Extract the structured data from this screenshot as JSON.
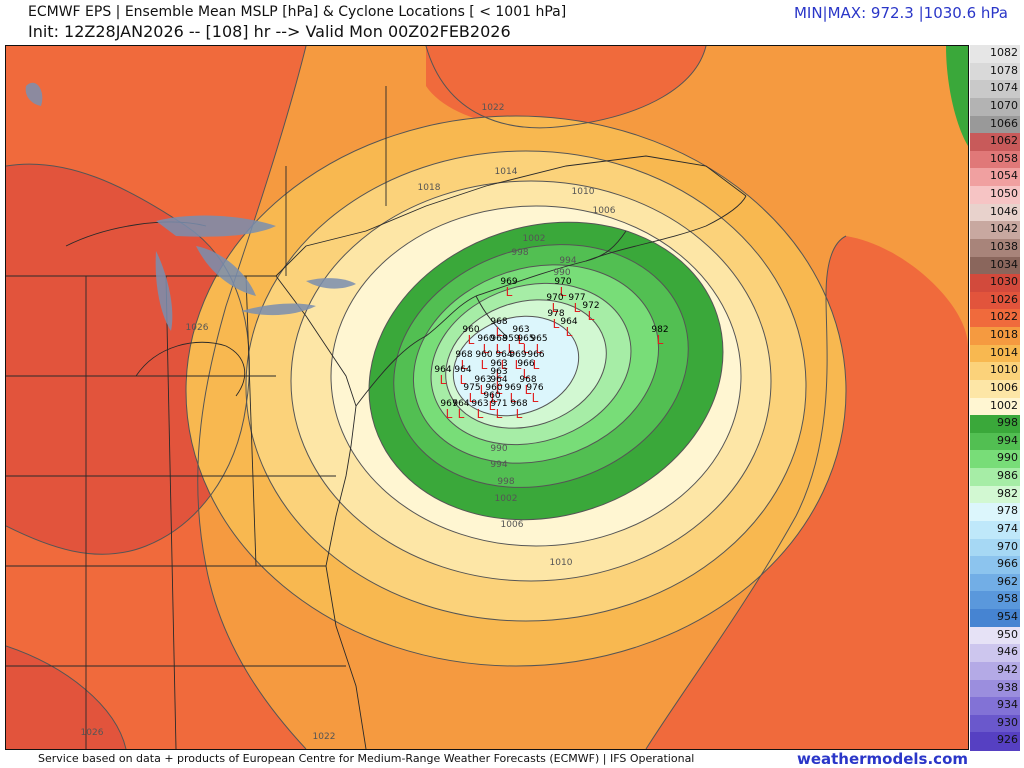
{
  "header": {
    "title": "ECMWF EPS | Ensemble Mean MSLP [hPa] & Cyclone Locations [ < 1001 hPa]",
    "subtitle": "Init: 12Z28JAN2026 -- [108] hr --> Valid Mon 00Z02FEB2026",
    "minmax": "MIN|MAX: 972.3 |1030.6 hPa"
  },
  "footer": {
    "credit": "Service based on data + products of European Centre for Medium-Range Weather Forecasts (ECMWF) | IFS Operational",
    "brand": "weathermodels.com"
  },
  "colors": {
    "land_border": "#2a2a2a",
    "lakes": "#7a8fb0",
    "contour": "#555555",
    "cyclone_marker": "#e02020"
  },
  "legend": [
    {
      "label": "1082",
      "color": "#e6e6e6"
    },
    {
      "label": "1078",
      "color": "#d9d9d9"
    },
    {
      "label": "1074",
      "color": "#c9c9c9"
    },
    {
      "label": "1070",
      "color": "#b3b3b3"
    },
    {
      "label": "1066",
      "color": "#999999"
    },
    {
      "label": "1062",
      "color": "#c85a5a"
    },
    {
      "label": "1058",
      "color": "#e07878"
    },
    {
      "label": "1054",
      "color": "#f0a0a0"
    },
    {
      "label": "1050",
      "color": "#f6c4c4"
    },
    {
      "label": "1046",
      "color": "#e8d2cc"
    },
    {
      "label": "1042",
      "color": "#c8a8a0"
    },
    {
      "label": "1038",
      "color": "#a8847a"
    },
    {
      "label": "1034",
      "color": "#8a665c"
    },
    {
      "label": "1030",
      "color": "#d24a3c"
    },
    {
      "label": "1026",
      "color": "#e2543c"
    },
    {
      "label": "1022",
      "color": "#f06a3c"
    },
    {
      "label": "1018",
      "color": "#f59a40"
    },
    {
      "label": "1014",
      "color": "#f8b850"
    },
    {
      "label": "1010",
      "color": "#fbd27a"
    },
    {
      "label": "1006",
      "color": "#fde6a6"
    },
    {
      "label": "1002",
      "color": "#fff6d2"
    },
    {
      "label": "998",
      "color": "#3aa83a"
    },
    {
      "label": "994",
      "color": "#52bf52"
    },
    {
      "label": "990",
      "color": "#78dd78"
    },
    {
      "label": "986",
      "color": "#a6eda6"
    },
    {
      "label": "982",
      "color": "#d2f8d2"
    },
    {
      "label": "978",
      "color": "#dcf6fc"
    },
    {
      "label": "974",
      "color": "#bfe8fa"
    },
    {
      "label": "970",
      "color": "#a6d8f4"
    },
    {
      "label": "966",
      "color": "#8cc4ee"
    },
    {
      "label": "962",
      "color": "#72aee6"
    },
    {
      "label": "958",
      "color": "#5a98dc"
    },
    {
      "label": "954",
      "color": "#4684d2"
    },
    {
      "label": "950",
      "color": "#e6e2f6"
    },
    {
      "label": "946",
      "color": "#cdc6ee"
    },
    {
      "label": "942",
      "color": "#b4aae6"
    },
    {
      "label": "938",
      "color": "#9b8ede"
    },
    {
      "label": "934",
      "color": "#8272d6"
    },
    {
      "label": "930",
      "color": "#6a58cc"
    },
    {
      "label": "926",
      "color": "#5640c2"
    }
  ],
  "contour_labels": [
    "1022",
    "1018",
    "1014",
    "1010",
    "1006",
    "1002",
    "998",
    "994",
    "990",
    "1026",
    "990",
    "994",
    "998",
    "1002",
    "1006",
    "1010",
    "1026",
    "1022"
  ],
  "cyclone_values": [
    "969",
    "970",
    "970",
    "977",
    "972",
    "978",
    "964",
    "982",
    "968",
    "963",
    "960",
    "960",
    "968",
    "959",
    "965",
    "965",
    "968",
    "960",
    "964",
    "969",
    "966",
    "963",
    "966",
    "964",
    "964",
    "963",
    "963",
    "964",
    "975",
    "960",
    "969",
    "968",
    "976",
    "960",
    "967",
    "971",
    "968",
    "964",
    "963"
  ]
}
